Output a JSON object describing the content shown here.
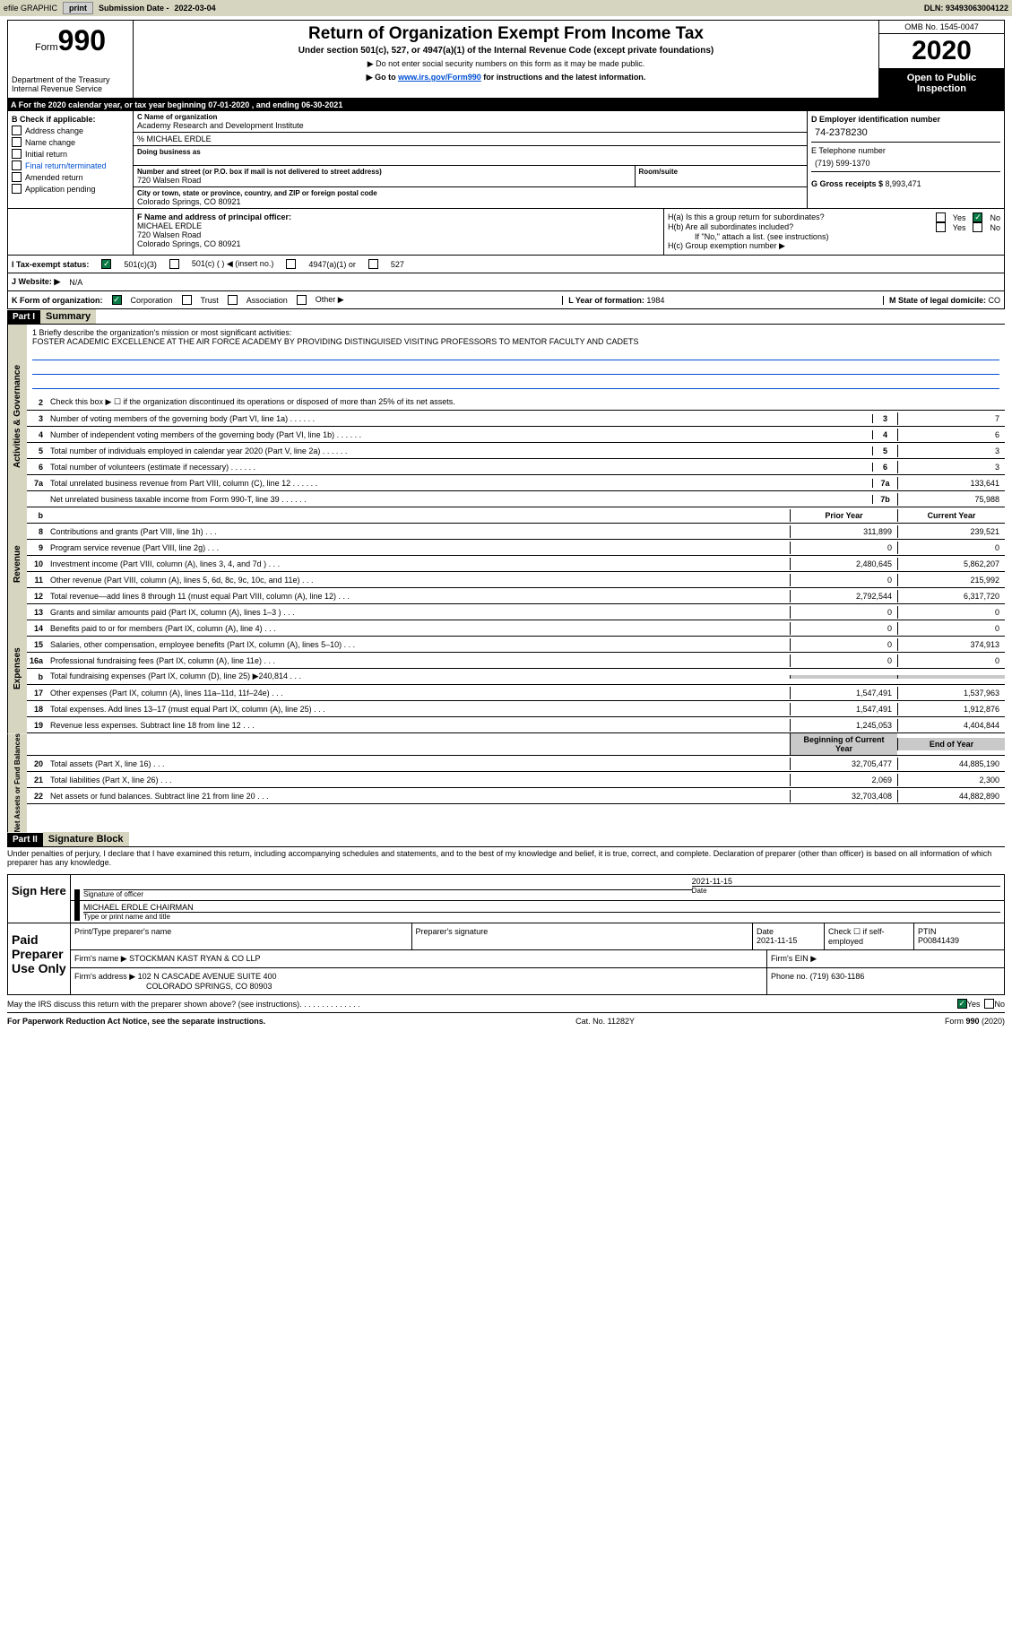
{
  "toolbar": {
    "efile": "efile GRAPHIC",
    "print": "print",
    "subdate_label": "Submission Date - ",
    "subdate": "2022-03-04",
    "dln": "DLN: 93493063004122"
  },
  "header": {
    "form_label": "Form",
    "form_num": "990",
    "dept": "Department of the Treasury\nInternal Revenue Service",
    "title": "Return of Organization Exempt From Income Tax",
    "subtitle": "Under section 501(c), 527, or 4947(a)(1) of the Internal Revenue Code (except private foundations)",
    "note1": "▶ Do not enter social security numbers on this form as it may be made public.",
    "note2_pre": "▶ Go to ",
    "note2_link": "www.irs.gov/Form990",
    "note2_post": " for instructions and the latest information.",
    "omb": "OMB No. 1545-0047",
    "year": "2020",
    "opi": "Open to Public Inspection"
  },
  "bar_a": "A For the 2020 calendar year, or tax year beginning 07-01-2020   , and ending 06-30-2021",
  "box_b": {
    "hdr": "B Check if applicable:",
    "items": [
      "Address change",
      "Name change",
      "Initial return",
      "Final return/terminated",
      "Amended return",
      "Application pending"
    ]
  },
  "box_c": {
    "name_label": "C Name of organization",
    "name": "Academy Research and Development Institute",
    "care_of": "% MICHAEL ERDLE",
    "dba_label": "Doing business as",
    "addr_label": "Number and street (or P.O. box if mail is not delivered to street address)",
    "room_label": "Room/suite",
    "addr": "720 Walsen Road",
    "city_label": "City or town, state or province, country, and ZIP or foreign postal code",
    "city": "Colorado Springs, CO  80921"
  },
  "box_d": {
    "ein_label": "D Employer identification number",
    "ein": "74-2378230",
    "tel_label": "E Telephone number",
    "tel": "(719) 599-1370",
    "gross_label": "G Gross receipts $ ",
    "gross": "8,993,471"
  },
  "box_f": {
    "label": "F Name and address of principal officer:",
    "name": "MICHAEL ERDLE",
    "addr1": "720 Walsen Road",
    "addr2": "Colorado Springs, CO  80921"
  },
  "box_h": {
    "ha_label": "H(a)  Is this a group return for subordinates?",
    "hb_label": "H(b)  Are all subordinates included?",
    "hb_note": "If \"No,\" attach a list. (see instructions)",
    "hc_label": "H(c)  Group exemption number ▶"
  },
  "row_i": {
    "label": "I   Tax-exempt status:",
    "o1": "501(c)(3)",
    "o2": "501(c) (  ) ◀ (insert no.)",
    "o3": "4947(a)(1) or",
    "o4": "527"
  },
  "row_j": {
    "label": "J   Website: ▶",
    "val": "N/A"
  },
  "row_k": {
    "label": "K Form of organization:",
    "opts": [
      "Corporation",
      "Trust",
      "Association",
      "Other ▶"
    ],
    "l_label": "L Year of formation: ",
    "l_val": "1984",
    "m_label": "M State of legal domicile: ",
    "m_val": "CO"
  },
  "part1": {
    "hdr": "Part I",
    "title": "Summary"
  },
  "mission": {
    "label": "1 Briefly describe the organization's mission or most significant activities:",
    "text": "FOSTER ACADEMIC EXCELLENCE AT THE AIR FORCE ACADEMY BY PROVIDING DISTINGUISED VISITING PROFESSORS TO MENTOR FACULTY AND CADETS"
  },
  "line2": "Check this box ▶ ☐  if the organization discontinued its operations or disposed of more than 25% of its net assets.",
  "gov_lines": [
    {
      "n": "3",
      "d": "Number of voting members of the governing body (Part VI, line 1a)",
      "cn": "3",
      "v": "7"
    },
    {
      "n": "4",
      "d": "Number of independent voting members of the governing body (Part VI, line 1b)",
      "cn": "4",
      "v": "6"
    },
    {
      "n": "5",
      "d": "Total number of individuals employed in calendar year 2020 (Part V, line 2a)",
      "cn": "5",
      "v": "3"
    },
    {
      "n": "6",
      "d": "Total number of volunteers (estimate if necessary)",
      "cn": "6",
      "v": "3"
    },
    {
      "n": "7a",
      "d": "Total unrelated business revenue from Part VIII, column (C), line 12",
      "cn": "7a",
      "v": "133,641"
    },
    {
      "n": "",
      "d": "Net unrelated business taxable income from Form 990-T, line 39",
      "cn": "7b",
      "v": "75,988"
    }
  ],
  "py_cy_hdr": {
    "b": "b",
    "py": "Prior Year",
    "cy": "Current Year"
  },
  "rev_lines": [
    {
      "n": "8",
      "d": "Contributions and grants (Part VIII, line 1h)",
      "py": "311,899",
      "cy": "239,521"
    },
    {
      "n": "9",
      "d": "Program service revenue (Part VIII, line 2g)",
      "py": "0",
      "cy": "0"
    },
    {
      "n": "10",
      "d": "Investment income (Part VIII, column (A), lines 3, 4, and 7d )",
      "py": "2,480,645",
      "cy": "5,862,207"
    },
    {
      "n": "11",
      "d": "Other revenue (Part VIII, column (A), lines 5, 6d, 8c, 9c, 10c, and 11e)",
      "py": "0",
      "cy": "215,992"
    },
    {
      "n": "12",
      "d": "Total revenue—add lines 8 through 11 (must equal Part VIII, column (A), line 12)",
      "py": "2,792,544",
      "cy": "6,317,720"
    }
  ],
  "exp_lines": [
    {
      "n": "13",
      "d": "Grants and similar amounts paid (Part IX, column (A), lines 1–3 )",
      "py": "0",
      "cy": "0"
    },
    {
      "n": "14",
      "d": "Benefits paid to or for members (Part IX, column (A), line 4)",
      "py": "0",
      "cy": "0"
    },
    {
      "n": "15",
      "d": "Salaries, other compensation, employee benefits (Part IX, column (A), lines 5–10)",
      "py": "0",
      "cy": "374,913"
    },
    {
      "n": "16a",
      "d": "Professional fundraising fees (Part IX, column (A), line 11e)",
      "py": "0",
      "cy": "0"
    },
    {
      "n": "b",
      "d": "Total fundraising expenses (Part IX, column (D), line 25) ▶240,814",
      "py": "",
      "cy": "",
      "shade": true
    },
    {
      "n": "17",
      "d": "Other expenses (Part IX, column (A), lines 11a–11d, 11f–24e)",
      "py": "1,547,491",
      "cy": "1,537,963"
    },
    {
      "n": "18",
      "d": "Total expenses. Add lines 13–17 (must equal Part IX, column (A), line 25)",
      "py": "1,547,491",
      "cy": "1,912,876"
    },
    {
      "n": "19",
      "d": "Revenue less expenses. Subtract line 18 from line 12",
      "py": "1,245,053",
      "cy": "4,404,844"
    }
  ],
  "na_hdr": {
    "b": "Beginning of Current Year",
    "e": "End of Year"
  },
  "na_lines": [
    {
      "n": "20",
      "d": "Total assets (Part X, line 16)",
      "py": "32,705,477",
      "cy": "44,885,190"
    },
    {
      "n": "21",
      "d": "Total liabilities (Part X, line 26)",
      "py": "2,069",
      "cy": "2,300"
    },
    {
      "n": "22",
      "d": "Net assets or fund balances. Subtract line 21 from line 20",
      "py": "32,703,408",
      "cy": "44,882,890"
    }
  ],
  "tabs": {
    "ag": "Activities & Governance",
    "rev": "Revenue",
    "exp": "Expenses",
    "na": "Net Assets or Fund Balances"
  },
  "part2": {
    "hdr": "Part II",
    "title": "Signature Block"
  },
  "penalty": "Under penalties of perjury, I declare that I have examined this return, including accompanying schedules and statements, and to the best of my knowledge and belief, it is true, correct, and complete. Declaration of preparer (other than officer) is based on all information of which preparer has any knowledge.",
  "sign": {
    "here": "Sign Here",
    "sig_label": "Signature of officer",
    "date_label": "Date",
    "date": "2021-11-15",
    "name": "MICHAEL ERDLE  CHAIRMAN",
    "name_label": "Type or print name and title"
  },
  "paid": {
    "label": "Paid Preparer Use Only",
    "r1": {
      "c1": "Print/Type preparer's name",
      "c2": "Preparer's signature",
      "c3_l": "Date",
      "c3": "2021-11-15",
      "c4_l": "Check ☐ if self-employed",
      "c5_l": "PTIN",
      "c5": "P00841439"
    },
    "r2": {
      "l": "Firm's name    ▶",
      "v": "STOCKMAN KAST RYAN & CO LLP",
      "ein": "Firm's EIN ▶"
    },
    "r3": {
      "l": "Firm's address ▶",
      "v": "102 N CASCADE AVENUE SUITE 400",
      "ph_l": "Phone no.",
      "ph": "(719) 630-1186"
    },
    "r3b": "COLORADO SPRINGS, CO  80903"
  },
  "discuss": "May the IRS discuss this return with the preparer shown above? (see instructions)",
  "footer": {
    "l": "For Paperwork Reduction Act Notice, see the separate instructions.",
    "c": "Cat. No. 11282Y",
    "r": "Form 990 (2020)"
  }
}
